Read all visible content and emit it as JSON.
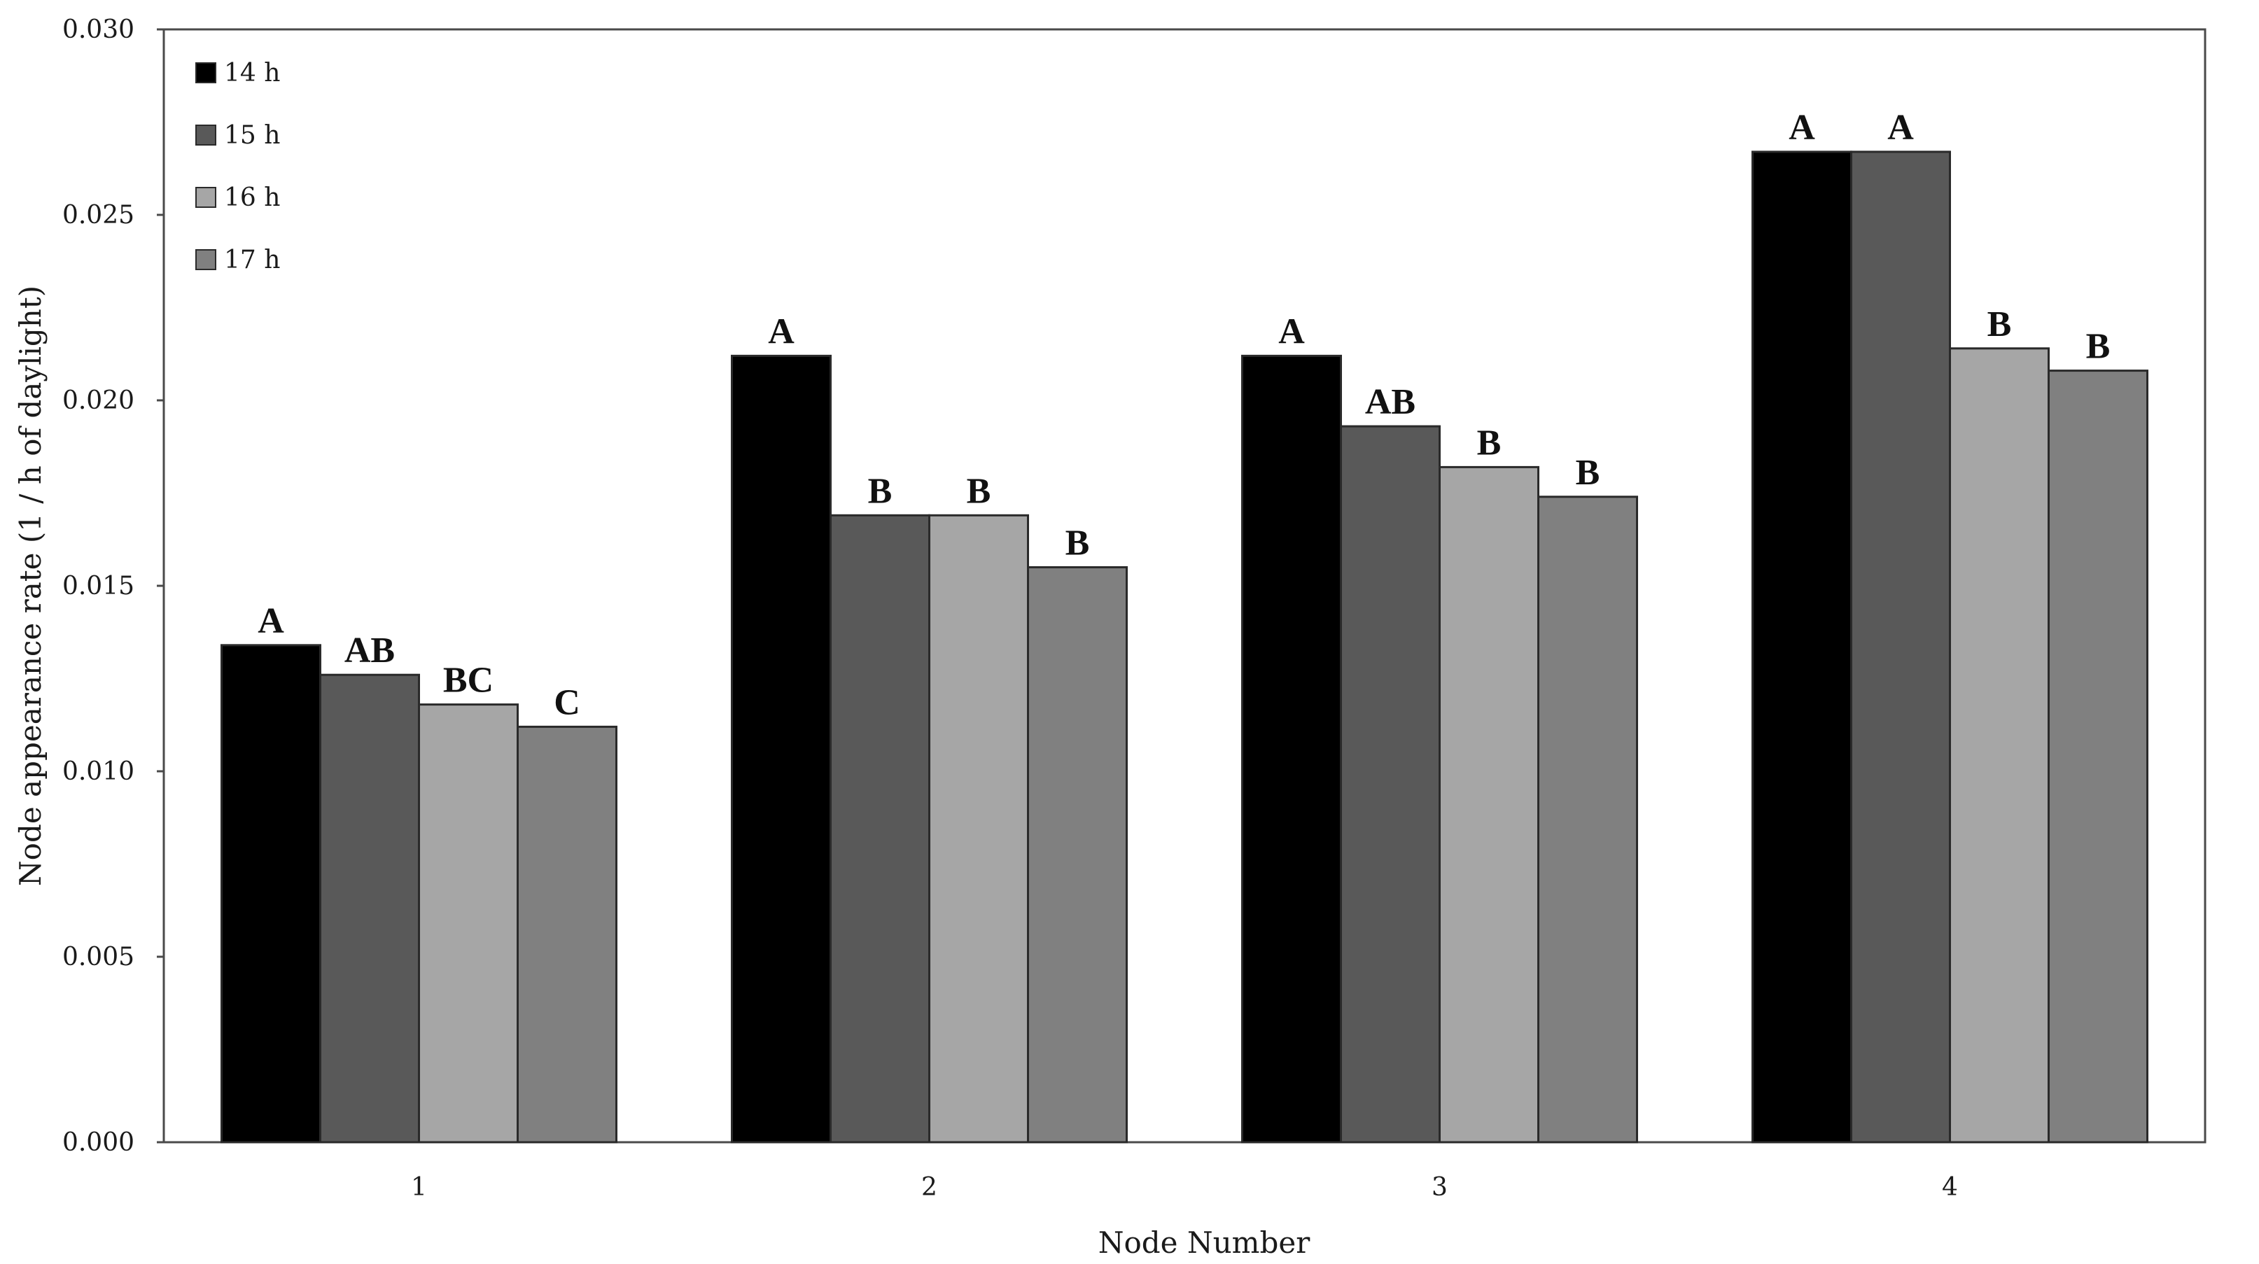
{
  "chart_data": {
    "type": "bar",
    "title": "",
    "xlabel": "Node Number",
    "ylabel": "Node appearance rate (1 / h of daylight)",
    "categories": [
      "1",
      "2",
      "3",
      "4"
    ],
    "ylim": [
      0,
      0.03
    ],
    "yticks": [
      "0.000",
      "0.005",
      "0.010",
      "0.015",
      "0.020",
      "0.025",
      "0.030"
    ],
    "grid": false,
    "legend_position": "top-left",
    "series": [
      {
        "name": "14 h",
        "color": "#000000",
        "values": [
          0.0134,
          0.0212,
          0.0212,
          0.0267
        ],
        "labels": [
          "A",
          "A",
          "A",
          "A"
        ]
      },
      {
        "name": "15 h",
        "color": "#595959",
        "values": [
          0.0126,
          0.0169,
          0.0193,
          0.0267
        ],
        "labels": [
          "AB",
          "B",
          "AB",
          "A"
        ]
      },
      {
        "name": "16 h",
        "color": "#a6a6a6",
        "values": [
          0.0118,
          0.0169,
          0.0182,
          0.0214
        ],
        "labels": [
          "BC",
          "B",
          "B",
          "B"
        ]
      },
      {
        "name": "17 h",
        "color": "#808080",
        "values": [
          0.0112,
          0.0155,
          0.0174,
          0.0208
        ],
        "labels": [
          "C",
          "B",
          "B",
          "B"
        ]
      }
    ]
  }
}
